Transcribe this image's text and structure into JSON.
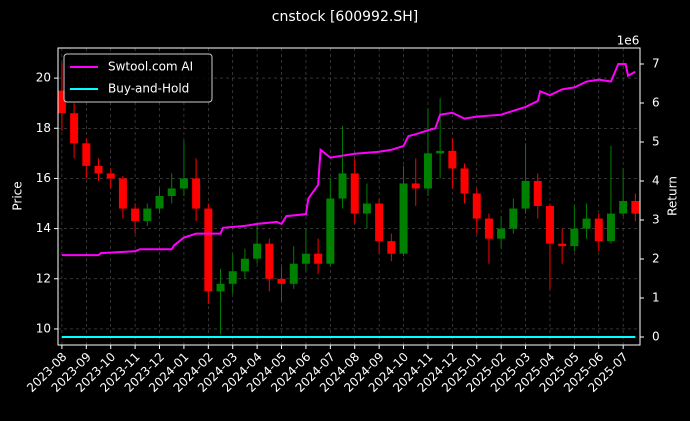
{
  "chart_data": {
    "type": "candlestick",
    "title": "cnstock [600992.SH]",
    "ylabel": "Price",
    "y2label": "Return",
    "y2_offset_label": "1e6",
    "up_color": "#008000",
    "down_color": "#ff0000",
    "grid": true,
    "legend": "upper left",
    "xlim": [
      -0.16,
      23.69
    ],
    "ylim": [
      9.36,
      21.2
    ],
    "y2lim": [
      -0.205,
      7.41
    ],
    "xticks": [
      {
        "value": 0,
        "label": "2023-08"
      },
      {
        "value": 1,
        "label": "2023-09"
      },
      {
        "value": 2,
        "label": "2023-10"
      },
      {
        "value": 3,
        "label": "2023-11"
      },
      {
        "value": 4,
        "label": "2023-12"
      },
      {
        "value": 5,
        "label": "2024-01"
      },
      {
        "value": 6,
        "label": "2024-02"
      },
      {
        "value": 7,
        "label": "2024-03"
      },
      {
        "value": 8,
        "label": "2024-04"
      },
      {
        "value": 9,
        "label": "2024-05"
      },
      {
        "value": 10,
        "label": "2024-06"
      },
      {
        "value": 11,
        "label": "2024-07"
      },
      {
        "value": 12,
        "label": "2024-08"
      },
      {
        "value": 13,
        "label": "2024-09"
      },
      {
        "value": 14,
        "label": "2024-10"
      },
      {
        "value": 15,
        "label": "2024-11"
      },
      {
        "value": 16,
        "label": "2024-12"
      },
      {
        "value": 17,
        "label": "2025-01"
      },
      {
        "value": 18,
        "label": "2025-02"
      },
      {
        "value": 19,
        "label": "2025-03"
      },
      {
        "value": 20,
        "label": "2025-04"
      },
      {
        "value": 21,
        "label": "2025-05"
      },
      {
        "value": 22,
        "label": "2025-06"
      },
      {
        "value": 23,
        "label": "2025-07"
      }
    ],
    "yticks": [
      10,
      12,
      14,
      16,
      18,
      20
    ],
    "y2ticks": [
      0,
      1,
      2,
      3,
      4,
      5,
      6,
      7
    ],
    "x": [
      0,
      0.5,
      1,
      1.5,
      2,
      2.5,
      3,
      3.5,
      4,
      4.5,
      5,
      5.5,
      6,
      6.5,
      7,
      7.5,
      8,
      8.5,
      9,
      9.5,
      10,
      10.5,
      11,
      11.5,
      12,
      12.5,
      13,
      13.5,
      14,
      14.5,
      15,
      15.5,
      16,
      16.5,
      17,
      17.5,
      18,
      18.5,
      19,
      19.5,
      20,
      20.5,
      21,
      21.5,
      22,
      22.5,
      23,
      23.5
    ],
    "open": [
      19.5,
      18.6,
      17.4,
      16.5,
      16.2,
      16.0,
      14.8,
      14.3,
      14.8,
      15.3,
      15.6,
      16.0,
      14.8,
      11.5,
      11.8,
      12.3,
      12.8,
      13.4,
      12.0,
      11.8,
      12.6,
      13.0,
      12.6,
      15.2,
      16.2,
      14.6,
      15.0,
      13.5,
      13.0,
      15.8,
      15.6,
      17.0,
      17.1,
      16.4,
      15.4,
      14.4,
      13.6,
      14.0,
      14.8,
      15.9,
      14.9,
      13.4,
      13.3,
      14.0,
      14.4,
      13.5,
      14.6,
      15.1
    ],
    "high": [
      20.6,
      19.0,
      17.6,
      16.8,
      16.4,
      16.1,
      15.0,
      15.0,
      15.6,
      16.2,
      17.5,
      16.8,
      15.0,
      12.4,
      13.0,
      13.2,
      14.2,
      13.6,
      12.5,
      13.3,
      14.0,
      13.6,
      16.0,
      18.1,
      16.8,
      15.8,
      15.2,
      13.8,
      16.5,
      16.8,
      18.8,
      19.2,
      17.6,
      16.6,
      15.6,
      14.6,
      14.5,
      15.2,
      17.4,
      16.2,
      15.0,
      14.0,
      14.9,
      15.0,
      14.6,
      17.3,
      16.4,
      15.4
    ],
    "low": [
      17.9,
      16.8,
      16.0,
      15.9,
      15.6,
      14.4,
      13.8,
      14.1,
      14.6,
      15.0,
      15.3,
      14.3,
      11.0,
      9.8,
      11.4,
      12.0,
      12.6,
      11.5,
      11.1,
      11.6,
      12.3,
      12.2,
      12.5,
      14.8,
      14.2,
      14.0,
      13.0,
      12.7,
      12.9,
      14.9,
      15.3,
      16.0,
      15.6,
      15.0,
      13.8,
      12.6,
      13.2,
      13.8,
      14.6,
      14.4,
      11.6,
      12.6,
      13.1,
      13.6,
      13.1,
      13.4,
      14.5,
      14.3
    ],
    "close": [
      18.6,
      17.4,
      16.5,
      16.2,
      16.0,
      14.8,
      14.3,
      14.8,
      15.3,
      15.6,
      16.0,
      14.8,
      11.5,
      11.8,
      12.3,
      12.8,
      13.4,
      12.0,
      11.8,
      12.6,
      13.0,
      12.6,
      15.2,
      16.2,
      14.6,
      15.0,
      13.5,
      13.0,
      15.8,
      15.6,
      17.0,
      17.1,
      16.4,
      15.4,
      14.4,
      13.6,
      14.0,
      14.8,
      15.9,
      14.9,
      13.4,
      13.3,
      14.0,
      14.4,
      13.5,
      14.6,
      15.1,
      14.6
    ],
    "lines": [
      {
        "name": "Swtool.com AI",
        "color": "#ff00ff",
        "axis": "y2",
        "x": [
          0,
          1.5,
          1.6,
          3.0,
          3.2,
          4.5,
          4.6,
          5.0,
          5.5,
          6.5,
          6.6,
          7.5,
          8,
          8.8,
          9.0,
          9.2,
          10.0,
          10.1,
          10.5,
          10.6,
          11.0,
          12,
          13,
          13.5,
          14,
          14.2,
          14.5,
          15,
          15.3,
          15.5,
          16,
          16.5,
          17,
          18,
          18.5,
          19,
          19.5,
          19.6,
          20,
          20.5,
          21,
          21.5,
          22,
          22.5,
          22.8,
          23.1,
          23.2,
          23.5
        ],
        "values": [
          2.1,
          2.1,
          2.15,
          2.2,
          2.25,
          2.25,
          2.35,
          2.55,
          2.65,
          2.65,
          2.8,
          2.85,
          2.9,
          2.95,
          2.9,
          3.1,
          3.15,
          3.55,
          3.9,
          4.8,
          4.6,
          4.7,
          4.75,
          4.8,
          4.9,
          5.15,
          5.2,
          5.3,
          5.35,
          5.7,
          5.75,
          5.6,
          5.65,
          5.7,
          5.8,
          5.9,
          6.05,
          6.3,
          6.2,
          6.35,
          6.4,
          6.55,
          6.6,
          6.55,
          7.0,
          7.0,
          6.7,
          6.8
        ]
      },
      {
        "name": "Buy-and-Hold",
        "color": "#00ffff",
        "axis": "y2",
        "x": [
          0,
          23.5
        ],
        "values": [
          0,
          0
        ]
      }
    ]
  }
}
